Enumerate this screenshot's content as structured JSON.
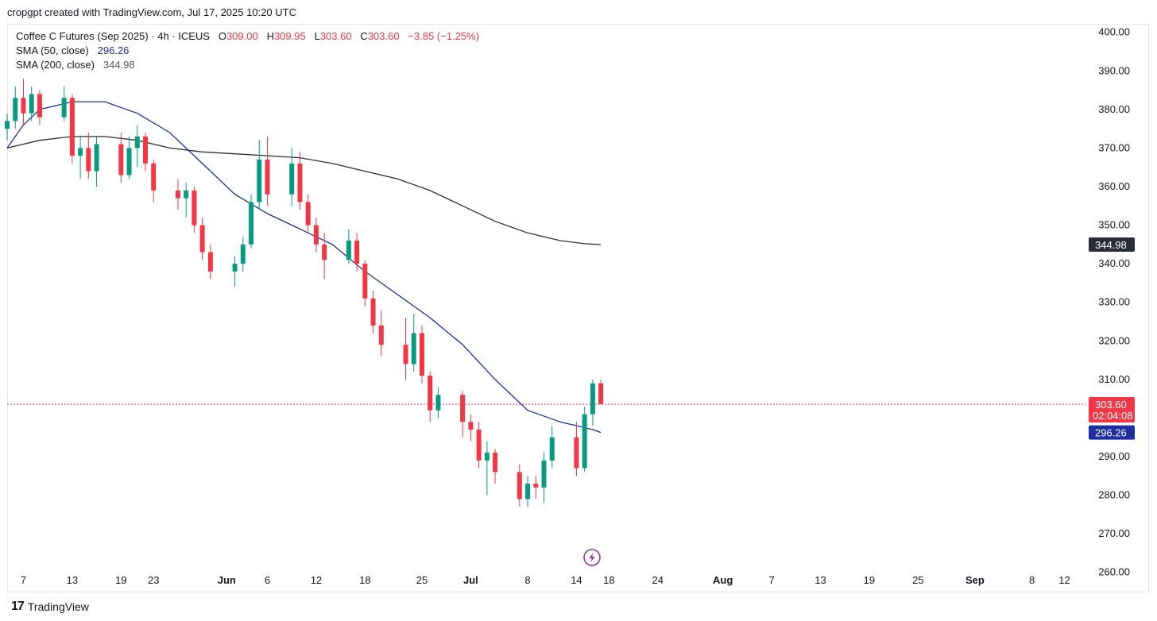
{
  "header": {
    "credit": "cropgpt created with TradingView.com, Jul 17, 2025 10:20 UTC"
  },
  "legend": {
    "symbol": "Coffee C Futures (Sep 2025) · 4h · ICEUS",
    "o_label": "O",
    "o_value": "309.00",
    "h_label": "H",
    "h_value": "309.95",
    "l_label": "L",
    "l_value": "303.60",
    "c_label": "C",
    "c_value": "303.60",
    "change": "−3.85 (−1.25%)",
    "sma50_label": "SMA (50, close)",
    "sma50_value": "296.26",
    "sma200_label": "SMA (200, close)",
    "sma200_value": "344.98"
  },
  "price_tags": {
    "sma200": "344.98",
    "last": "303.60",
    "countdown": "02:04:08",
    "sma50": "296.26"
  },
  "footer": {
    "brand": "TradingView",
    "logo": "17"
  },
  "colors": {
    "up": "#089981",
    "down": "#f23645",
    "sma50": "#1c2fa0",
    "sma200": "#2a2e39",
    "last_line": "#f23645"
  },
  "chart_data": {
    "type": "candlestick",
    "ylim": [
      255,
      402
    ],
    "yticks": [
      260,
      270,
      280,
      290,
      300,
      310,
      320,
      330,
      340,
      350,
      360,
      370,
      380,
      390,
      400
    ],
    "ytick_labels": [
      "260.00",
      "270.00",
      "280.00",
      "290.00",
      "300.00",
      "310.00",
      "320.00",
      "330.00",
      "340.00",
      "350.00",
      "360.00",
      "370.00",
      "380.00",
      "390.00",
      "400.00"
    ],
    "xlim": [
      "2025-05-05",
      "2025-09-14"
    ],
    "xticks": [
      {
        "date": "2025-05-07",
        "label": "7",
        "bold": false
      },
      {
        "date": "2025-05-13",
        "label": "13",
        "bold": false
      },
      {
        "date": "2025-05-19",
        "label": "19",
        "bold": false
      },
      {
        "date": "2025-05-23",
        "label": "23",
        "bold": false
      },
      {
        "date": "2025-06-01",
        "label": "Jun",
        "bold": true
      },
      {
        "date": "2025-06-06",
        "label": "6",
        "bold": false
      },
      {
        "date": "2025-06-12",
        "label": "12",
        "bold": false
      },
      {
        "date": "2025-06-18",
        "label": "18",
        "bold": false
      },
      {
        "date": "2025-06-25",
        "label": "25",
        "bold": false
      },
      {
        "date": "2025-07-01",
        "label": "Jul",
        "bold": true
      },
      {
        "date": "2025-07-08",
        "label": "8",
        "bold": false
      },
      {
        "date": "2025-07-14",
        "label": "14",
        "bold": false
      },
      {
        "date": "2025-07-18",
        "label": "18",
        "bold": false
      },
      {
        "date": "2025-07-24",
        "label": "24",
        "bold": false
      },
      {
        "date": "2025-08-01",
        "label": "Aug",
        "bold": true
      },
      {
        "date": "2025-08-07",
        "label": "7",
        "bold": false
      },
      {
        "date": "2025-08-13",
        "label": "13",
        "bold": false
      },
      {
        "date": "2025-08-19",
        "label": "19",
        "bold": false
      },
      {
        "date": "2025-08-25",
        "label": "25",
        "bold": false
      },
      {
        "date": "2025-09-01",
        "label": "Sep",
        "bold": true
      },
      {
        "date": "2025-09-08",
        "label": "8",
        "bold": false
      },
      {
        "date": "2025-09-12",
        "label": "12",
        "bold": false
      }
    ],
    "last_price": 303.6,
    "candles": [
      {
        "d": "2025-05-05",
        "o": 375,
        "h": 379,
        "l": 372,
        "c": 377
      },
      {
        "d": "2025-05-06",
        "o": 377,
        "h": 386,
        "l": 375,
        "c": 383
      },
      {
        "d": "2025-05-07",
        "o": 383,
        "h": 388,
        "l": 376,
        "c": 379
      },
      {
        "d": "2025-05-08",
        "o": 379,
        "h": 386,
        "l": 377,
        "c": 384
      },
      {
        "d": "2025-05-09",
        "o": 384,
        "h": 385,
        "l": 376,
        "c": 378
      },
      {
        "d": "2025-05-12",
        "o": 378,
        "h": 386,
        "l": 377,
        "c": 383
      },
      {
        "d": "2025-05-13",
        "o": 383,
        "h": 384,
        "l": 366,
        "c": 368
      },
      {
        "d": "2025-05-14",
        "o": 368,
        "h": 373,
        "l": 362,
        "c": 370
      },
      {
        "d": "2025-05-15",
        "o": 370,
        "h": 374,
        "l": 362,
        "c": 364
      },
      {
        "d": "2025-05-16",
        "o": 364,
        "h": 373,
        "l": 360,
        "c": 371
      },
      {
        "d": "2025-05-19",
        "o": 371,
        "h": 374,
        "l": 361,
        "c": 363
      },
      {
        "d": "2025-05-20",
        "o": 363,
        "h": 373,
        "l": 362,
        "c": 370
      },
      {
        "d": "2025-05-21",
        "o": 370,
        "h": 376,
        "l": 365,
        "c": 373
      },
      {
        "d": "2025-05-22",
        "o": 373,
        "h": 374,
        "l": 364,
        "c": 366
      },
      {
        "d": "2025-05-23",
        "o": 366,
        "h": 367,
        "l": 356,
        "c": 359
      },
      {
        "d": "2025-05-26",
        "o": 359,
        "h": 362,
        "l": 354,
        "c": 357
      },
      {
        "d": "2025-05-27",
        "o": 357,
        "h": 361,
        "l": 352,
        "c": 359
      },
      {
        "d": "2025-05-28",
        "o": 359,
        "h": 360,
        "l": 348,
        "c": 350
      },
      {
        "d": "2025-05-29",
        "o": 350,
        "h": 352,
        "l": 341,
        "c": 343
      },
      {
        "d": "2025-05-30",
        "o": 343,
        "h": 345,
        "l": 336,
        "c": 338
      },
      {
        "d": "2025-06-02",
        "o": 338,
        "h": 342,
        "l": 334,
        "c": 340
      },
      {
        "d": "2025-06-03",
        "o": 340,
        "h": 347,
        "l": 338,
        "c": 345
      },
      {
        "d": "2025-06-04",
        "o": 345,
        "h": 358,
        "l": 344,
        "c": 356
      },
      {
        "d": "2025-06-05",
        "o": 356,
        "h": 372,
        "l": 354,
        "c": 367
      },
      {
        "d": "2025-06-06",
        "o": 367,
        "h": 373,
        "l": 355,
        "c": 358
      },
      {
        "d": "2025-06-09",
        "o": 358,
        "h": 370,
        "l": 355,
        "c": 366
      },
      {
        "d": "2025-06-10",
        "o": 366,
        "h": 369,
        "l": 354,
        "c": 356
      },
      {
        "d": "2025-06-11",
        "o": 356,
        "h": 358,
        "l": 348,
        "c": 350
      },
      {
        "d": "2025-06-12",
        "o": 350,
        "h": 352,
        "l": 343,
        "c": 345
      },
      {
        "d": "2025-06-13",
        "o": 345,
        "h": 348,
        "l": 336,
        "c": 341
      },
      {
        "d": "2025-06-16",
        "o": 341,
        "h": 349,
        "l": 340,
        "c": 346
      },
      {
        "d": "2025-06-17",
        "o": 346,
        "h": 348,
        "l": 338,
        "c": 340
      },
      {
        "d": "2025-06-18",
        "o": 340,
        "h": 341,
        "l": 329,
        "c": 331
      },
      {
        "d": "2025-06-19",
        "o": 331,
        "h": 333,
        "l": 322,
        "c": 324
      },
      {
        "d": "2025-06-20",
        "o": 324,
        "h": 328,
        "l": 316,
        "c": 319
      },
      {
        "d": "2025-06-23",
        "o": 319,
        "h": 326,
        "l": 310,
        "c": 314
      },
      {
        "d": "2025-06-24",
        "o": 314,
        "h": 327,
        "l": 312,
        "c": 322
      },
      {
        "d": "2025-06-25",
        "o": 322,
        "h": 324,
        "l": 309,
        "c": 311
      },
      {
        "d": "2025-06-26",
        "o": 311,
        "h": 312,
        "l": 299,
        "c": 302
      },
      {
        "d": "2025-06-27",
        "o": 302,
        "h": 308,
        "l": 300,
        "c": 306
      },
      {
        "d": "2025-06-30",
        "o": 306,
        "h": 307,
        "l": 295,
        "c": 299
      },
      {
        "d": "2025-07-01",
        "o": 299,
        "h": 301,
        "l": 294,
        "c": 297
      },
      {
        "d": "2025-07-02",
        "o": 297,
        "h": 299,
        "l": 287,
        "c": 289
      },
      {
        "d": "2025-07-03",
        "o": 289,
        "h": 294,
        "l": 280,
        "c": 291
      },
      {
        "d": "2025-07-04",
        "o": 291,
        "h": 292,
        "l": 283,
        "c": 286
      },
      {
        "d": "2025-07-07",
        "o": 286,
        "h": 288,
        "l": 277,
        "c": 279
      },
      {
        "d": "2025-07-08",
        "o": 279,
        "h": 285,
        "l": 277,
        "c": 283
      },
      {
        "d": "2025-07-09",
        "o": 283,
        "h": 285,
        "l": 279,
        "c": 282
      },
      {
        "d": "2025-07-10",
        "o": 282,
        "h": 291,
        "l": 278,
        "c": 289
      },
      {
        "d": "2025-07-11",
        "o": 289,
        "h": 298,
        "l": 287,
        "c": 295
      },
      {
        "d": "2025-07-14",
        "o": 295,
        "h": 299,
        "l": 285,
        "c": 287
      },
      {
        "d": "2025-07-15",
        "o": 287,
        "h": 303,
        "l": 286,
        "c": 301
      },
      {
        "d": "2025-07-16",
        "o": 301,
        "h": 310,
        "l": 298,
        "c": 309
      },
      {
        "d": "2025-07-17",
        "o": 309,
        "h": 309.95,
        "l": 303.6,
        "c": 303.6
      }
    ],
    "sma50": [
      [
        "2025-05-05",
        370
      ],
      [
        "2025-05-07",
        376
      ],
      [
        "2025-05-09",
        380
      ],
      [
        "2025-05-13",
        382
      ],
      [
        "2025-05-17",
        382
      ],
      [
        "2025-05-21",
        379
      ],
      [
        "2025-05-25",
        374
      ],
      [
        "2025-05-29",
        366
      ],
      [
        "2025-06-02",
        358
      ],
      [
        "2025-06-06",
        353
      ],
      [
        "2025-06-10",
        349
      ],
      [
        "2025-06-14",
        345
      ],
      [
        "2025-06-18",
        338
      ],
      [
        "2025-06-22",
        332
      ],
      [
        "2025-06-26",
        326
      ],
      [
        "2025-06-30",
        319
      ],
      [
        "2025-07-04",
        310
      ],
      [
        "2025-07-08",
        302
      ],
      [
        "2025-07-12",
        299
      ],
      [
        "2025-07-16",
        297
      ],
      [
        "2025-07-17",
        296.26
      ]
    ],
    "sma200": [
      [
        "2025-05-05",
        370
      ],
      [
        "2025-05-09",
        372
      ],
      [
        "2025-05-13",
        373
      ],
      [
        "2025-05-17",
        373
      ],
      [
        "2025-05-21",
        372
      ],
      [
        "2025-05-25",
        370
      ],
      [
        "2025-05-29",
        369
      ],
      [
        "2025-06-02",
        368.5
      ],
      [
        "2025-06-06",
        368
      ],
      [
        "2025-06-10",
        367.5
      ],
      [
        "2025-06-14",
        366
      ],
      [
        "2025-06-18",
        364
      ],
      [
        "2025-06-22",
        362
      ],
      [
        "2025-06-26",
        359
      ],
      [
        "2025-06-30",
        355
      ],
      [
        "2025-07-04",
        351
      ],
      [
        "2025-07-08",
        348
      ],
      [
        "2025-07-12",
        346
      ],
      [
        "2025-07-15",
        345.2
      ],
      [
        "2025-07-17",
        344.98
      ]
    ]
  }
}
